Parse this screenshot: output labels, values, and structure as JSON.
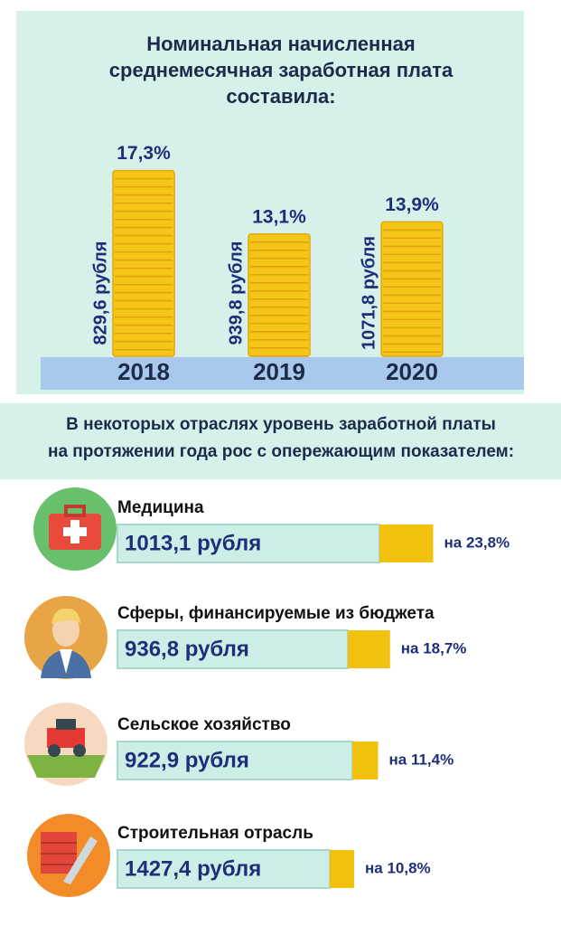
{
  "header": {
    "title_lines": [
      "Номинальная начисленная",
      "среднемесячная заработная плата",
      "составила:"
    ]
  },
  "years": [
    {
      "year": "2018",
      "wage": "829,6 рубля",
      "growth": {
        "value": 17.3,
        "label": "17,3%"
      }
    },
    {
      "year": "2019",
      "wage": "939,8 рубля",
      "growth": {
        "value": 13.1,
        "label": "13,1%"
      }
    },
    {
      "year": "2020",
      "wage": "1071,8 рубля",
      "growth": {
        "value": 13.9,
        "label": "13,9%"
      }
    }
  ],
  "section": {
    "title_lines": [
      "В некоторых отраслях уровень заработной платы",
      "на протяжении года рос с опережающим показателем:"
    ]
  },
  "sectors": [
    {
      "name": "Медицина",
      "wage": "1013,1 рубля",
      "growth": {
        "value": 23.8,
        "label": "на 23,8%"
      }
    },
    {
      "name": "Сферы, финансируемые из бюджета",
      "wage": "936,8 рубля",
      "growth": {
        "value": 18.7,
        "label": "на 18,7%"
      }
    },
    {
      "name": "Сельское хозяйство",
      "wage": "922,9 рубля",
      "growth": {
        "value": 11.4,
        "label": "на 11,4%"
      }
    },
    {
      "name": "Строительная отрасль",
      "wage": "1427,4 рубля",
      "growth": {
        "value": 10.8,
        "label": "на 10,8%"
      }
    }
  ]
}
